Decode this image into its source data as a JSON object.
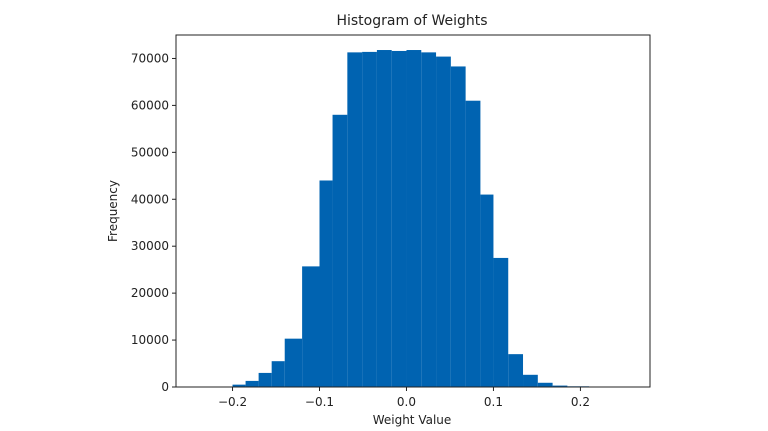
{
  "chart_data": {
    "type": "bar",
    "title": "Histogram of Weights",
    "xlabel": "Weight Value",
    "ylabel": "Frequency",
    "bar_color": "#0063b1",
    "xlim": [
      -0.265,
      0.28
    ],
    "ylim": [
      0,
      75000
    ],
    "x_ticks": [
      -0.2,
      -0.1,
      0.0,
      0.1,
      0.2
    ],
    "x_tick_labels": [
      "−0.2",
      "−0.1",
      "0.0",
      "0.1",
      "0.2"
    ],
    "y_ticks": [
      0,
      10000,
      20000,
      30000,
      40000,
      50000,
      60000,
      70000
    ],
    "y_tick_labels": [
      "0",
      "10000",
      "20000",
      "30000",
      "40000",
      "50000",
      "60000",
      "70000"
    ],
    "bins": [
      {
        "x0": -0.2,
        "x1": -0.185,
        "value": 500
      },
      {
        "x0": -0.185,
        "x1": -0.17,
        "value": 1300
      },
      {
        "x0": -0.17,
        "x1": -0.155,
        "value": 3000
      },
      {
        "x0": -0.155,
        "x1": -0.14,
        "value": 5500
      },
      {
        "x0": -0.14,
        "x1": -0.12,
        "value": 10300
      },
      {
        "x0": -0.12,
        "x1": -0.1,
        "value": 25700
      },
      {
        "x0": -0.1,
        "x1": -0.085,
        "value": 44000
      },
      {
        "x0": -0.085,
        "x1": -0.068,
        "value": 58000
      },
      {
        "x0": -0.068,
        "x1": -0.051,
        "value": 71300
      },
      {
        "x0": -0.051,
        "x1": -0.034,
        "value": 71400
      },
      {
        "x0": -0.034,
        "x1": -0.017,
        "value": 71800
      },
      {
        "x0": -0.017,
        "x1": 0.0,
        "value": 71600
      },
      {
        "x0": 0.0,
        "x1": 0.017,
        "value": 71800
      },
      {
        "x0": 0.017,
        "x1": 0.034,
        "value": 71300
      },
      {
        "x0": 0.034,
        "x1": 0.051,
        "value": 70400
      },
      {
        "x0": 0.051,
        "x1": 0.068,
        "value": 68300
      },
      {
        "x0": 0.068,
        "x1": 0.085,
        "value": 61000
      },
      {
        "x0": 0.085,
        "x1": 0.1,
        "value": 41000
      },
      {
        "x0": 0.1,
        "x1": 0.117,
        "value": 27500
      },
      {
        "x0": 0.117,
        "x1": 0.134,
        "value": 7000
      },
      {
        "x0": 0.134,
        "x1": 0.151,
        "value": 2600
      },
      {
        "x0": 0.151,
        "x1": 0.168,
        "value": 900
      },
      {
        "x0": 0.168,
        "x1": 0.185,
        "value": 300
      },
      {
        "x0": 0.185,
        "x1": 0.21,
        "value": 150
      }
    ]
  }
}
